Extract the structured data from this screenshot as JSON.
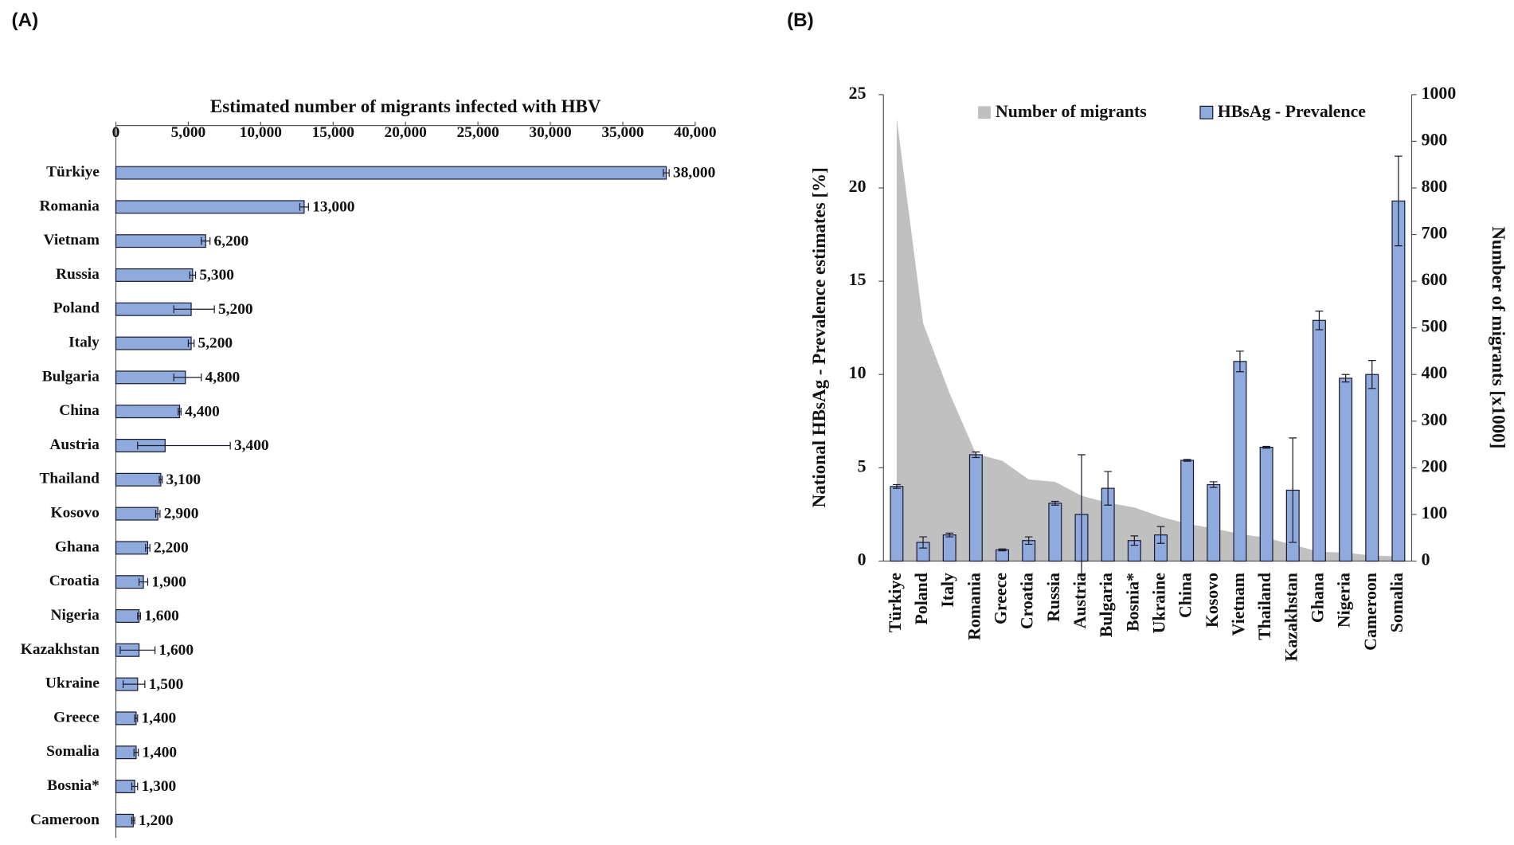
{
  "chart_data": [
    {
      "type": "hbar",
      "panel_label": "(A)",
      "title": "Estimated number of migrants infected with HBV",
      "categories": [
        "Türkiye",
        "Romania",
        "Vietnam",
        "Russia",
        "Poland",
        "Italy",
        "Bulgaria",
        "China",
        "Austria",
        "Thailand",
        "Kosovo",
        "Ghana",
        "Croatia",
        "Nigeria",
        "Kazakhstan",
        "Ukraine",
        "Greece",
        "Somalia",
        "Bosnia*",
        "Cameroon"
      ],
      "values": [
        38000,
        13000,
        6200,
        5300,
        5200,
        5200,
        4800,
        4400,
        3400,
        3100,
        2900,
        2200,
        1900,
        1600,
        1600,
        1500,
        1400,
        1400,
        1300,
        1200
      ],
      "value_labels": [
        "38,000",
        "13,000",
        "6,200",
        "5,300",
        "5,200",
        "5,200",
        "4,800",
        "4,400",
        "3,400",
        "3,100",
        "2,900",
        "2,200",
        "1,900",
        "1,600",
        "1,600",
        "1,500",
        "1,400",
        "1,400",
        "1,300",
        "1,200"
      ],
      "error_low": [
        200,
        300,
        300,
        200,
        1200,
        200,
        800,
        100,
        1900,
        100,
        150,
        150,
        300,
        100,
        1300,
        1000,
        100,
        150,
        200,
        100
      ],
      "error_high": [
        200,
        300,
        300,
        200,
        1600,
        200,
        1100,
        100,
        4500,
        100,
        150,
        150,
        300,
        100,
        1100,
        500,
        100,
        150,
        200,
        100
      ],
      "color": "#8faadc",
      "xlim": [
        0,
        40000
      ],
      "xticks": [
        0,
        {
          "value": 5000,
          "label": "5,000"
        },
        {
          "value": 10000,
          "label": "10,000"
        },
        {
          "value": 15000,
          "label": "15,000"
        },
        {
          "value": 20000,
          "label": "20,000"
        },
        {
          "value": 25000,
          "label": "25,000"
        },
        {
          "value": 30000,
          "label": "30,000"
        },
        {
          "value": 35000,
          "label": "35,000"
        },
        {
          "value": 40000,
          "label": "40,000"
        }
      ]
    },
    {
      "type": "bar_area",
      "panel_label": "(B)",
      "ylabel": "National HBsAg - Prevalence estimates [%]",
      "y2label": "Number of migrants [x1000]",
      "categories": [
        "Türkiye",
        "Poland",
        "Italy",
        "Romania",
        "Greece",
        "Croatia",
        "Russia",
        "Austria",
        "Bulgaria",
        "Bosnia*",
        "Ukraine",
        "China",
        "Kosovo",
        "Vietnam",
        "Thailand",
        "Kazakhstan",
        "Ghana",
        "Nigeria",
        "Cameroon",
        "Somalia"
      ],
      "ylim": [
        0,
        25
      ],
      "yticks": [
        0,
        5,
        10,
        15,
        20,
        25
      ],
      "y2lim": [
        0,
        1000
      ],
      "y2ticks": [
        0,
        100,
        200,
        300,
        400,
        500,
        600,
        700,
        800,
        900,
        1000
      ],
      "legend": "top",
      "series": [
        {
          "name": "Number of migrants",
          "type": "area",
          "axis": "y2",
          "color": "#c0c0c0",
          "values": [
            950,
            510,
            360,
            230,
            215,
            175,
            170,
            140,
            125,
            115,
            95,
            80,
            70,
            58,
            50,
            35,
            20,
            18,
            12,
            10
          ]
        },
        {
          "name": "HBsAg - Prevalence",
          "type": "bar",
          "color": "#8faadc",
          "values": [
            4.0,
            1.0,
            1.4,
            5.7,
            0.6,
            1.1,
            3.1,
            2.5,
            3.9,
            1.1,
            1.4,
            5.4,
            4.1,
            10.7,
            6.1,
            3.8,
            12.9,
            9.8,
            10.0,
            19.3
          ],
          "errors": [
            0.1,
            0.3,
            0.1,
            0.15,
            0.05,
            0.2,
            0.1,
            3.2,
            0.9,
            0.25,
            0.45,
            0.05,
            0.15,
            0.55,
            0.05,
            2.8,
            0.5,
            0.2,
            0.75,
            2.4
          ]
        }
      ]
    }
  ]
}
